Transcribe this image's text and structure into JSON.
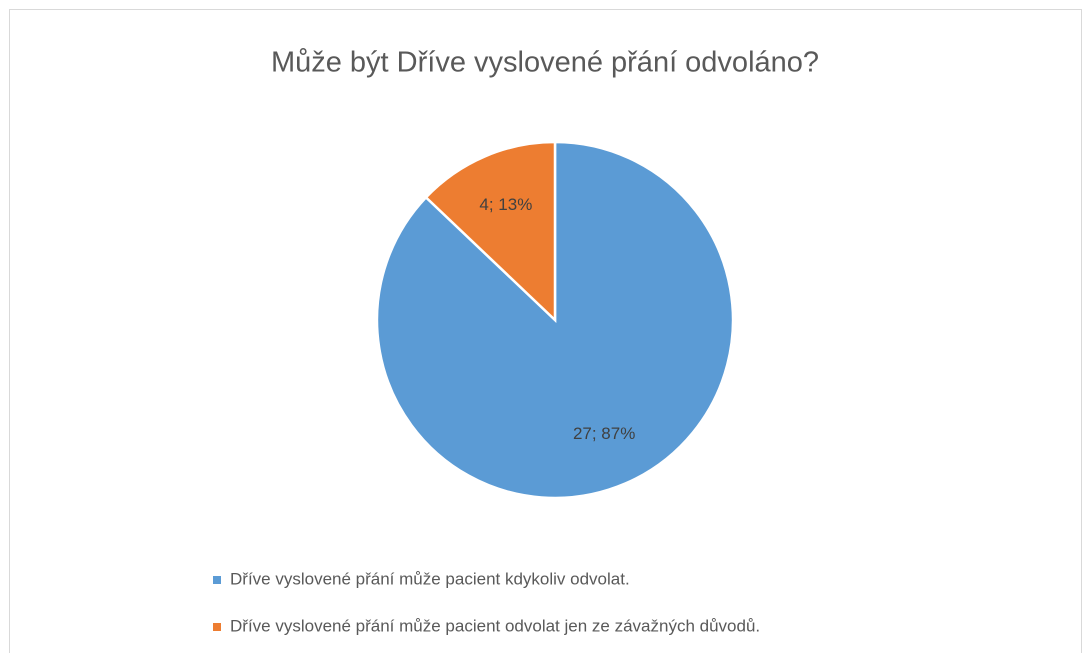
{
  "chart_data": {
    "type": "pie",
    "title": "Může být Dříve vyslovené přání odvoláno?",
    "categories": [
      "Dříve vyslovené přání může pacient kdykoliv odvolat.",
      "Dříve vyslovené přání může pacient odvolat jen ze závažných důvodů."
    ],
    "values": [
      27,
      4
    ],
    "value_labels": [
      "27; 87%",
      "4; 13%"
    ],
    "colors": [
      "#5b9bd5",
      "#ed7d31"
    ]
  }
}
